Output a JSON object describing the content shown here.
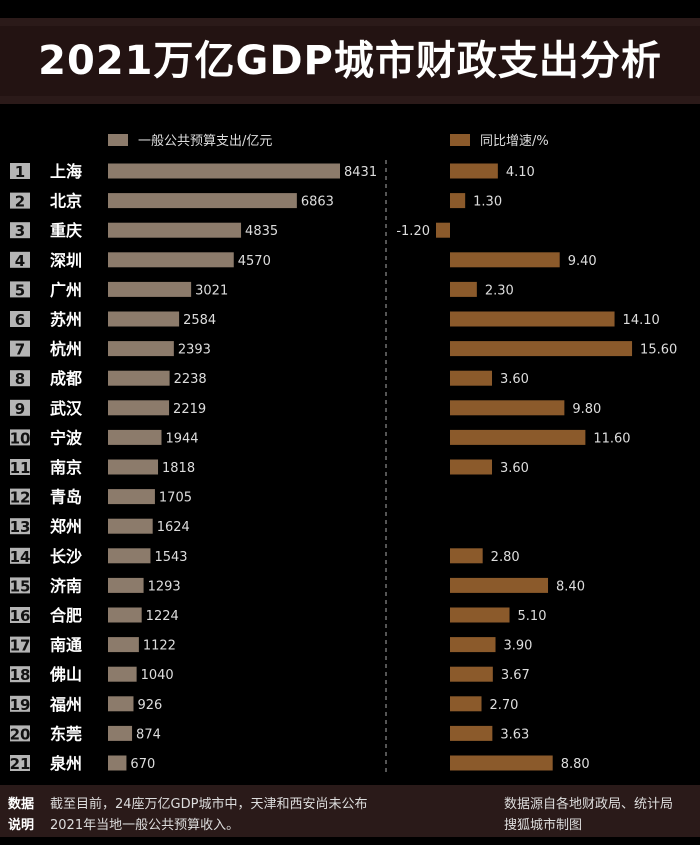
{
  "title": "2021万亿GDP城市财政支出分析",
  "colors": {
    "spend": "#8c7b6b",
    "growth": "#8b5a2b",
    "rank_box": "#b5b5b5",
    "band": "#2b1a19"
  },
  "chart_data": {
    "type": "bar",
    "orientation": "horizontal",
    "categories": [
      "上海",
      "北京",
      "重庆",
      "深圳",
      "广州",
      "苏州",
      "杭州",
      "成都",
      "武汉",
      "宁波",
      "南京",
      "青岛",
      "郑州",
      "长沙",
      "济南",
      "合肥",
      "南通",
      "佛山",
      "福州",
      "东莞",
      "泉州"
    ],
    "ranks": [
      "1",
      "2",
      "3",
      "4",
      "5",
      "6",
      "7",
      "8",
      "9",
      "10",
      "11",
      "12",
      "13",
      "14",
      "15",
      "16",
      "17",
      "18",
      "19",
      "20",
      "21"
    ],
    "series": [
      {
        "name": "一般公共预算支出/亿元",
        "values": [
          8431,
          6863,
          4835,
          4570,
          3021,
          2584,
          2393,
          2238,
          2219,
          1944,
          1818,
          1705,
          1624,
          1543,
          1293,
          1224,
          1122,
          1040,
          926,
          874,
          670
        ],
        "labels": [
          "8431",
          "6863",
          "4835",
          "4570",
          "3021",
          "2584",
          "2393",
          "2238",
          "2219",
          "1944",
          "1818",
          "1705",
          "1624",
          "1543",
          "1293",
          "1224",
          "1122",
          "1040",
          "926",
          "874",
          "670"
        ]
      },
      {
        "name": "同比增速/%",
        "values": [
          4.1,
          1.3,
          -1.2,
          9.4,
          2.3,
          14.1,
          15.6,
          3.6,
          9.8,
          11.6,
          3.6,
          null,
          null,
          2.8,
          8.4,
          5.1,
          3.9,
          3.67,
          2.7,
          3.63,
          8.8
        ],
        "labels": [
          "4.10",
          "1.30",
          "-1.20",
          "9.40",
          "2.30",
          "14.10",
          "15.60",
          "3.60",
          "9.80",
          "11.60",
          "3.60",
          "",
          "",
          "2.80",
          "8.40",
          "5.10",
          "3.90",
          "3.67",
          "2.70",
          "3.63",
          "8.80"
        ]
      }
    ],
    "legend_position": "top"
  },
  "footer": {
    "label_line1": "数据",
    "label_line2": "说明",
    "note_line1": "截至目前，24座万亿GDP城市中，天津和西安尚未公布",
    "note_line2": "2021年当地一般公共预算收入。",
    "source_line1": "数据源自各地财政局、统计局",
    "source_line2": "搜狐城市制图"
  }
}
